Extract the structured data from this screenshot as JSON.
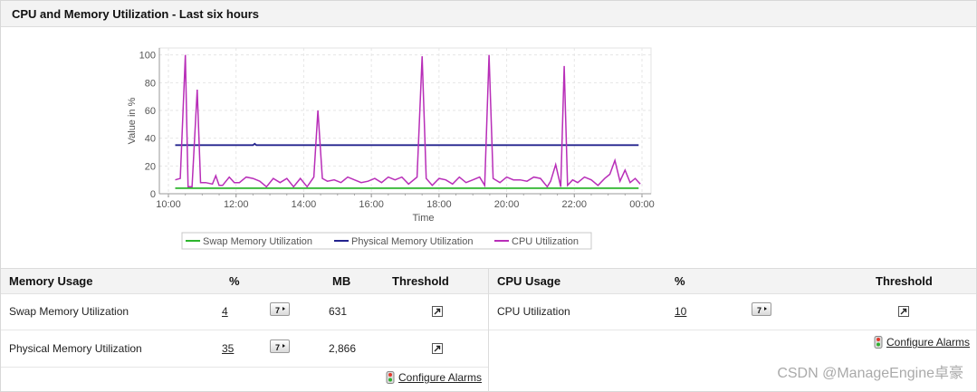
{
  "title": "CPU and Memory Utilization - Last six hours",
  "chart_data": {
    "type": "line",
    "xlabel": "Time",
    "ylabel": "Value in %",
    "ylim": [
      0,
      105
    ],
    "yticks": [
      "0",
      "20",
      "40",
      "60",
      "80",
      "100"
    ],
    "xticks": [
      "10:00",
      "12:00",
      "14:00",
      "16:00",
      "18:00",
      "20:00",
      "22:00",
      "00:00"
    ],
    "x_range_hours": [
      10,
      24
    ],
    "grid": true,
    "legend": "bottom",
    "series": [
      {
        "name": "Swap Memory Utilization",
        "color": "#2db52d",
        "x": [
          10.2,
          23.9
        ],
        "values": [
          4,
          4
        ]
      },
      {
        "name": "Physical Memory Utilization",
        "color": "#23238e",
        "x": [
          10.2,
          12.5,
          12.55,
          12.6,
          12.7,
          23.9
        ],
        "values": [
          35,
          35,
          36,
          35,
          35,
          35
        ]
      },
      {
        "name": "CPU Utilization",
        "color": "#b82eb8",
        "x": [
          10.2,
          10.35,
          10.5,
          10.58,
          10.7,
          10.85,
          10.95,
          11.1,
          11.3,
          11.4,
          11.5,
          11.6,
          11.8,
          11.95,
          12.1,
          12.3,
          12.5,
          12.7,
          12.9,
          13.1,
          13.3,
          13.5,
          13.7,
          13.9,
          14.1,
          14.3,
          14.42,
          14.55,
          14.7,
          14.9,
          15.1,
          15.3,
          15.5,
          15.7,
          15.9,
          16.1,
          16.3,
          16.5,
          16.7,
          16.9,
          17.1,
          17.35,
          17.5,
          17.62,
          17.8,
          18.0,
          18.2,
          18.4,
          18.6,
          18.8,
          19.0,
          19.2,
          19.35,
          19.48,
          19.6,
          19.8,
          20.0,
          20.2,
          20.4,
          20.6,
          20.8,
          21.0,
          21.2,
          21.3,
          21.45,
          21.6,
          21.7,
          21.8,
          21.95,
          22.1,
          22.3,
          22.5,
          22.7,
          22.9,
          23.05,
          23.2,
          23.35,
          23.5,
          23.65,
          23.8,
          23.95
        ],
        "values": [
          10,
          11,
          100,
          5,
          5,
          75,
          8,
          8,
          7,
          13,
          6,
          6,
          12,
          8,
          8,
          12,
          11,
          9,
          5,
          11,
          8,
          11,
          5,
          11,
          5,
          12,
          60,
          11,
          9,
          10,
          8,
          12,
          10,
          8,
          9,
          11,
          8,
          12,
          10,
          12,
          7,
          12,
          99,
          11,
          6,
          11,
          10,
          7,
          12,
          8,
          10,
          12,
          6,
          100,
          11,
          8,
          12,
          10,
          10,
          9,
          12,
          11,
          5,
          9,
          21,
          5,
          92,
          6,
          10,
          8,
          12,
          10,
          6,
          11,
          14,
          24,
          9,
          17,
          8,
          11,
          7
        ]
      }
    ]
  },
  "memory_table": {
    "headers": {
      "name": "Memory Usage",
      "pct": "%",
      "mb": "MB",
      "threshold": "Threshold"
    },
    "rows": [
      {
        "name": "Swap Memory Utilization",
        "pct": "4",
        "mb": "631"
      },
      {
        "name": "Physical Memory Utilization",
        "pct": "35",
        "mb": "2,866"
      }
    ],
    "alarm_label": "Configure Alarms"
  },
  "cpu_table": {
    "headers": {
      "name": "CPU Usage",
      "pct": "%",
      "threshold": "Threshold"
    },
    "rows": [
      {
        "name": "CPU Utilization",
        "pct": "10"
      }
    ],
    "alarm_label": "Configure Alarms"
  },
  "watermark": "CSDN @ManageEngine卓豪"
}
